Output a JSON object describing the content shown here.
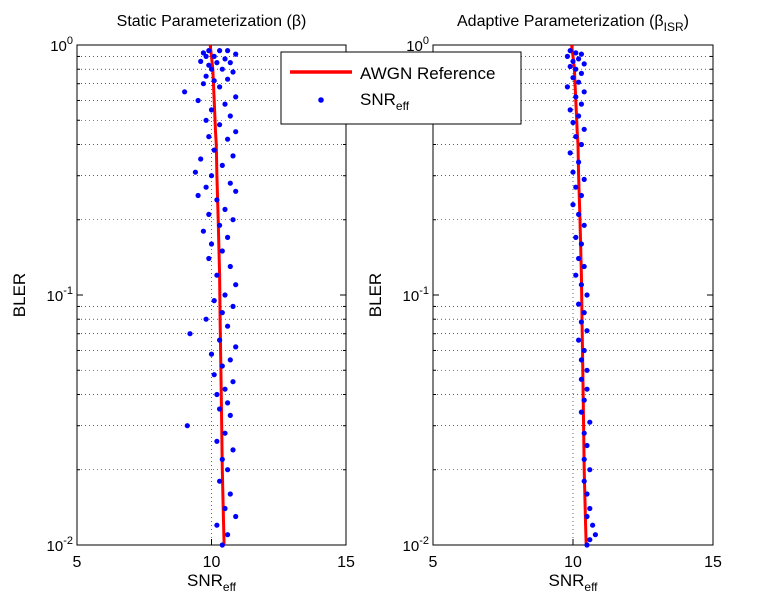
{
  "chart_data": [
    {
      "type": "scatter",
      "title": "Static Parameterization (β)",
      "xlabel": "SNR",
      "xlabel_sub": "eff",
      "ylabel": "BLER",
      "xlim": [
        5,
        15
      ],
      "ylim": [
        0.01,
        1
      ],
      "yscale": "log",
      "grid": "dotted, x=10 and minor y",
      "x_ticks": [
        "5",
        "10",
        "15"
      ],
      "y_ticks": [
        {
          "base": "10",
          "exp": "-2",
          "value": 0.01
        },
        {
          "base": "10",
          "exp": "-1",
          "value": 0.1
        },
        {
          "base": "10",
          "exp": "0",
          "value": 1
        }
      ],
      "series": [
        {
          "name": "AWGN Reference",
          "kind": "line",
          "color": "#ff0000",
          "points": [
            [
              9.95,
              1
            ],
            [
              10.0,
              0.9
            ],
            [
              10.05,
              0.8
            ],
            [
              10.1,
              0.6
            ],
            [
              10.15,
              0.45
            ],
            [
              10.18,
              0.4
            ],
            [
              10.2,
              0.3
            ],
            [
              10.25,
              0.2
            ],
            [
              10.3,
              0.12
            ],
            [
              10.32,
              0.08
            ],
            [
              10.35,
              0.05
            ],
            [
              10.38,
              0.03
            ],
            [
              10.4,
              0.02
            ],
            [
              10.45,
              0.012
            ],
            [
              10.47,
              0.01
            ]
          ]
        },
        {
          "name": "SNR",
          "name_sub": "eff",
          "kind": "scatter",
          "color": "#0000ff",
          "points": [
            [
              9.9,
              0.95
            ],
            [
              10.3,
              0.95
            ],
            [
              10.6,
              0.95
            ],
            [
              9.7,
              0.93
            ],
            [
              10.9,
              0.92
            ],
            [
              9.8,
              0.9
            ],
            [
              10.1,
              0.9
            ],
            [
              10.5,
              0.88
            ],
            [
              9.6,
              0.86
            ],
            [
              10.7,
              0.85
            ],
            [
              10.2,
              0.85
            ],
            [
              9.9,
              0.83
            ],
            [
              10.4,
              0.8
            ],
            [
              10.0,
              0.8
            ],
            [
              10.8,
              0.78
            ],
            [
              9.8,
              0.75
            ],
            [
              10.6,
              0.73
            ],
            [
              10.1,
              0.72
            ],
            [
              9.7,
              0.7
            ],
            [
              9.0,
              0.65
            ],
            [
              10.3,
              0.68
            ],
            [
              10.9,
              0.62
            ],
            [
              9.5,
              0.6
            ],
            [
              10.5,
              0.58
            ],
            [
              10.0,
              0.55
            ],
            [
              10.7,
              0.52
            ],
            [
              9.8,
              0.5
            ],
            [
              10.3,
              0.48
            ],
            [
              10.9,
              0.45
            ],
            [
              9.9,
              0.43
            ],
            [
              10.6,
              0.42
            ],
            [
              10.1,
              0.38
            ],
            [
              10.8,
              0.36
            ],
            [
              9.6,
              0.35
            ],
            [
              10.4,
              0.33
            ],
            [
              9.4,
              0.31
            ],
            [
              10.0,
              0.3
            ],
            [
              10.7,
              0.28
            ],
            [
              9.8,
              0.27
            ],
            [
              10.9,
              0.26
            ],
            [
              9.5,
              0.25
            ],
            [
              10.2,
              0.24
            ],
            [
              10.5,
              0.22
            ],
            [
              9.9,
              0.21
            ],
            [
              10.8,
              0.2
            ],
            [
              10.3,
              0.19
            ],
            [
              9.7,
              0.18
            ],
            [
              10.6,
              0.17
            ],
            [
              10.0,
              0.16
            ],
            [
              10.4,
              0.15
            ],
            [
              9.9,
              0.14
            ],
            [
              10.7,
              0.13
            ],
            [
              10.2,
              0.12
            ],
            [
              10.9,
              0.11
            ],
            [
              10.5,
              0.1
            ],
            [
              10.1,
              0.095
            ],
            [
              10.8,
              0.09
            ],
            [
              10.4,
              0.085
            ],
            [
              9.8,
              0.08
            ],
            [
              10.6,
              0.075
            ],
            [
              9.2,
              0.07
            ],
            [
              10.3,
              0.066
            ],
            [
              10.9,
              0.062
            ],
            [
              10.0,
              0.058
            ],
            [
              10.7,
              0.055
            ],
            [
              10.4,
              0.052
            ],
            [
              10.1,
              0.048
            ],
            [
              10.8,
              0.045
            ],
            [
              10.5,
              0.042
            ],
            [
              10.2,
              0.04
            ],
            [
              10.6,
              0.037
            ],
            [
              10.3,
              0.035
            ],
            [
              10.7,
              0.033
            ],
            [
              9.1,
              0.03
            ],
            [
              10.5,
              0.028
            ],
            [
              10.2,
              0.026
            ],
            [
              10.8,
              0.024
            ],
            [
              10.4,
              0.022
            ],
            [
              10.6,
              0.02
            ],
            [
              10.3,
              0.018
            ],
            [
              10.7,
              0.016
            ],
            [
              10.5,
              0.014
            ],
            [
              10.9,
              0.013
            ],
            [
              10.2,
              0.012
            ],
            [
              10.6,
              0.011
            ],
            [
              10.4,
              0.01
            ]
          ]
        }
      ]
    },
    {
      "type": "scatter",
      "title": "Adaptive Parameterization (β",
      "title_sub": "ISR",
      "title_tail": ")",
      "xlabel": "SNR",
      "xlabel_sub": "eff",
      "ylabel": "BLER",
      "xlim": [
        5,
        15
      ],
      "ylim": [
        0.01,
        1
      ],
      "yscale": "log",
      "grid": "dotted, x=10 and minor y",
      "x_ticks": [
        "5",
        "10",
        "15"
      ],
      "y_ticks": [
        {
          "base": "10",
          "exp": "-2",
          "value": 0.01
        },
        {
          "base": "10",
          "exp": "-1",
          "value": 0.1
        },
        {
          "base": "10",
          "exp": "0",
          "value": 1
        }
      ],
      "series": [
        {
          "name": "AWGN Reference",
          "kind": "line",
          "color": "#ff0000",
          "points": [
            [
              9.95,
              1
            ],
            [
              10.0,
              0.9
            ],
            [
              10.05,
              0.8
            ],
            [
              10.1,
              0.6
            ],
            [
              10.15,
              0.45
            ],
            [
              10.18,
              0.4
            ],
            [
              10.2,
              0.3
            ],
            [
              10.25,
              0.2
            ],
            [
              10.3,
              0.12
            ],
            [
              10.32,
              0.08
            ],
            [
              10.35,
              0.05
            ],
            [
              10.38,
              0.03
            ],
            [
              10.4,
              0.02
            ],
            [
              10.45,
              0.012
            ],
            [
              10.47,
              0.01
            ]
          ]
        },
        {
          "name": "SNR",
          "name_sub": "eff",
          "kind": "scatter",
          "color": "#0000ff",
          "points": [
            [
              9.9,
              0.95
            ],
            [
              10.1,
              0.93
            ],
            [
              10.3,
              0.92
            ],
            [
              9.8,
              0.9
            ],
            [
              10.2,
              0.88
            ],
            [
              10.0,
              0.86
            ],
            [
              10.4,
              0.84
            ],
            [
              9.9,
              0.82
            ],
            [
              10.1,
              0.8
            ],
            [
              10.3,
              0.77
            ],
            [
              10.0,
              0.74
            ],
            [
              10.2,
              0.71
            ],
            [
              9.8,
              0.68
            ],
            [
              10.4,
              0.65
            ],
            [
              10.1,
              0.62
            ],
            [
              10.3,
              0.58
            ],
            [
              9.9,
              0.55
            ],
            [
              10.2,
              0.52
            ],
            [
              10.0,
              0.49
            ],
            [
              10.4,
              0.46
            ],
            [
              10.1,
              0.43
            ],
            [
              10.3,
              0.4
            ],
            [
              9.9,
              0.37
            ],
            [
              10.2,
              0.34
            ],
            [
              10.0,
              0.31
            ],
            [
              10.4,
              0.29
            ],
            [
              10.1,
              0.27
            ],
            [
              10.3,
              0.25
            ],
            [
              10.0,
              0.23
            ],
            [
              10.2,
              0.21
            ],
            [
              10.4,
              0.19
            ],
            [
              10.1,
              0.17
            ],
            [
              10.3,
              0.16
            ],
            [
              10.2,
              0.14
            ],
            [
              10.4,
              0.13
            ],
            [
              10.1,
              0.12
            ],
            [
              10.3,
              0.11
            ],
            [
              10.5,
              0.1
            ],
            [
              10.2,
              0.092
            ],
            [
              10.4,
              0.085
            ],
            [
              10.3,
              0.078
            ],
            [
              10.5,
              0.072
            ],
            [
              10.2,
              0.066
            ],
            [
              10.4,
              0.06
            ],
            [
              10.3,
              0.055
            ],
            [
              10.5,
              0.05
            ],
            [
              10.3,
              0.046
            ],
            [
              10.5,
              0.042
            ],
            [
              10.4,
              0.038
            ],
            [
              10.3,
              0.034
            ],
            [
              10.6,
              0.031
            ],
            [
              10.4,
              0.028
            ],
            [
              10.5,
              0.025
            ],
            [
              10.4,
              0.022
            ],
            [
              10.6,
              0.02
            ],
            [
              10.4,
              0.018
            ],
            [
              10.5,
              0.016
            ],
            [
              10.6,
              0.014
            ],
            [
              10.5,
              0.013
            ],
            [
              10.7,
              0.012
            ],
            [
              10.8,
              0.011
            ],
            [
              10.6,
              0.0105
            ],
            [
              10.5,
              0.01
            ]
          ]
        }
      ]
    }
  ],
  "legend": {
    "placement": "top-center",
    "line_label": "AWGN Reference",
    "marker_label": "SNR",
    "marker_label_sub": "eff"
  }
}
